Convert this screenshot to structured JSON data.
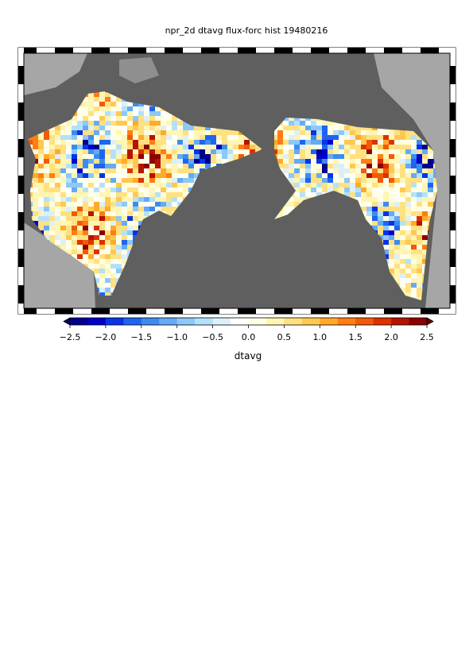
{
  "chart_data": {
    "type": "colormap",
    "title": "npr_2d dtavg flux-forc hist 19480216",
    "colorbar_label": "dtavg",
    "clim": [
      -2.5,
      2.5
    ],
    "ticks": [
      {
        "value": -2.5,
        "label": "−2.5"
      },
      {
        "value": -2,
        "label": "−2.0"
      },
      {
        "value": -1.5,
        "label": "−1.5"
      },
      {
        "value": -1,
        "label": "−1.0"
      },
      {
        "value": -0.5,
        "label": "−0.5"
      },
      {
        "value": 0,
        "label": "0.0"
      },
      0.5,
      {
        "value": 1,
        "label": "1.0"
      },
      1.5,
      {
        "value": 2,
        "label": "2.0"
      },
      2.5
    ],
    "colors": [
      "#00008c",
      "#0000c8",
      "#0a32e6",
      "#1e64f0",
      "#3c8cf0",
      "#64aaf5",
      "#8cc8fa",
      "#b4e1fa",
      "#dcf0fa",
      "#ffffff",
      "#ffffe6",
      "#fff5b4",
      "#ffe182",
      "#ffc850",
      "#ffaa28",
      "#ff7d14",
      "#f05a0a",
      "#dc3200",
      "#b41400",
      "#8c0000"
    ],
    "under_color": "#000064",
    "over_color": "#640000"
  }
}
